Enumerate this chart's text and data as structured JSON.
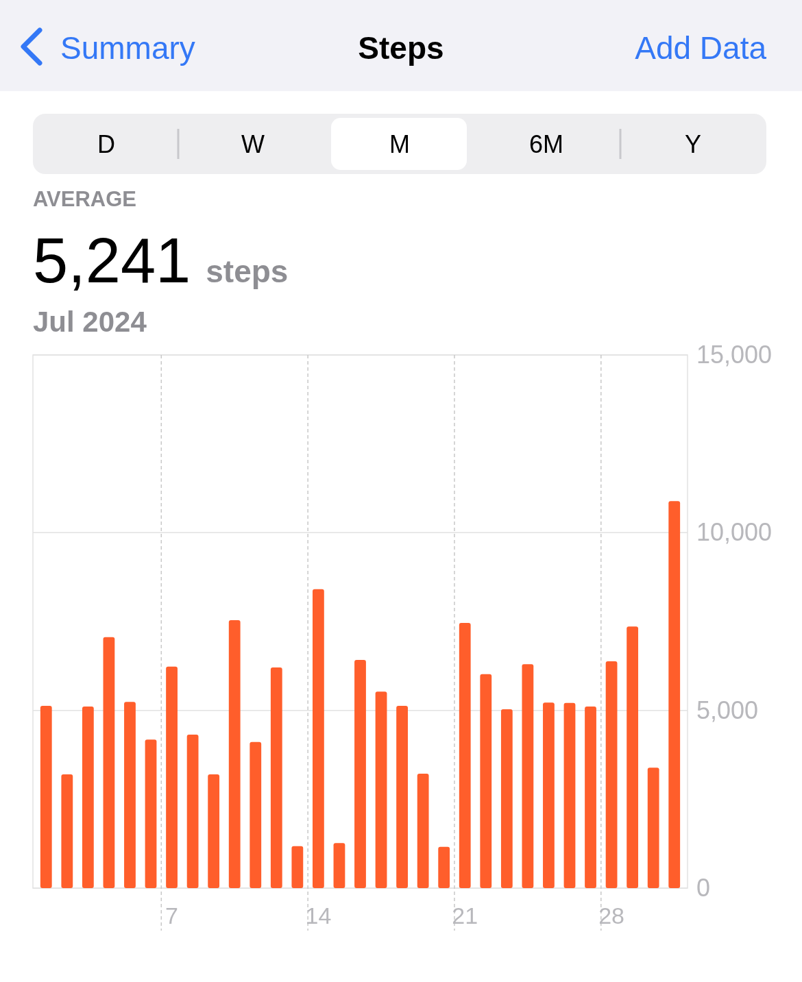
{
  "chart_data": {
    "type": "bar",
    "title": "Steps",
    "subtitle": "Jul 2024",
    "annotations": [
      "Summary",
      "Add Data",
      "D",
      "W",
      "M",
      "6M",
      "Y",
      "AVERAGE",
      "5,241",
      "steps"
    ],
    "categories": [
      null,
      null,
      null,
      null,
      null,
      null,
      "7",
      null,
      null,
      null,
      null,
      null,
      null,
      "14",
      null,
      null,
      null,
      null,
      null,
      null,
      "21",
      null,
      null,
      null,
      null,
      null,
      null,
      "28",
      null,
      null,
      null
    ],
    "values": [
      5130,
      3200,
      5110,
      7060,
      5240,
      4180,
      6230,
      4320,
      3200,
      7540,
      4110,
      6210,
      1180,
      8410,
      1270,
      6420,
      5530,
      5130,
      3220,
      1160,
      7460,
      6020,
      5030,
      6300,
      5220,
      5210,
      5110,
      6380,
      7360,
      3390,
      10890
    ],
    "color": "#ff5e2b",
    "ylim": [
      0,
      15000
    ],
    "yticks": [
      {
        "value": 0,
        "label": "0"
      },
      {
        "value": 5000,
        "label": "5,000"
      },
      {
        "value": 10000,
        "label": "10,000"
      },
      {
        "value": 15000,
        "label": "15,000"
      }
    ],
    "grid": true
  }
}
